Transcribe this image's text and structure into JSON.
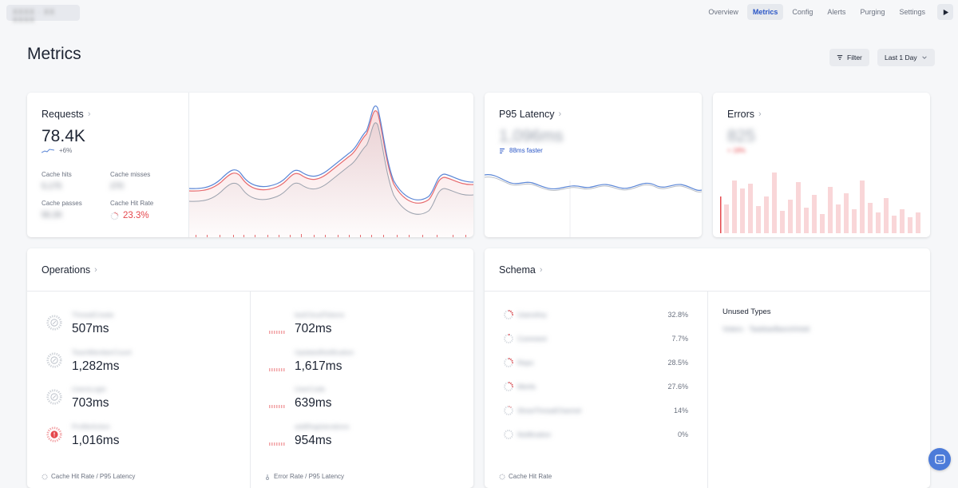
{
  "nav": {
    "brand": "XXXX · XX XXXX",
    "tabs": [
      "Overview",
      "Metrics",
      "Config",
      "Alerts",
      "Purging",
      "Settings"
    ],
    "active": "Metrics"
  },
  "page": {
    "title": "Metrics"
  },
  "toolbar": {
    "filter_label": "Filter",
    "range_label": "Last 1 Day"
  },
  "requests": {
    "title": "Requests",
    "total": "78.4K",
    "change": "+6%",
    "cache_hits_label": "Cache hits",
    "cache_hits_value": "5,175",
    "cache_misses_label": "Cache misses",
    "cache_misses_value": "270",
    "cache_passes_label": "Cache passes",
    "cache_passes_value": "56.2K",
    "hit_rate_label": "Cache Hit Rate",
    "hit_rate_value": "23.3%"
  },
  "latency": {
    "title": "P95 Latency",
    "value": "1,096ms",
    "delta": "88ms faster"
  },
  "errors": {
    "title": "Errors",
    "value": "825",
    "delta": "+ 18%"
  },
  "operations": {
    "title": "Operations",
    "left": [
      {
        "name": "ThreadCreate",
        "value": "507ms"
      },
      {
        "name": "TeamMemberCount",
        "value": "1,282ms"
      },
      {
        "name": "UsersLogin",
        "value": "703ms"
      },
      {
        "name": "ProfileAction",
        "value": "1,016ms"
      }
    ],
    "right": [
      {
        "name": "lastCloudTokens",
        "value": "702ms"
      },
      {
        "name": "UpdatedNotification",
        "value": "1,617ms"
      },
      {
        "name": "UserCode",
        "value": "639ms"
      },
      {
        "name": "addRegisterations",
        "value": "954ms"
      }
    ],
    "left_footer": "Cache Hit Rate / P95 Latency",
    "right_footer": "Error Rate / P95 Latency"
  },
  "schema": {
    "title": "Schema",
    "rows": [
      {
        "name": "UsersAny",
        "pct": "32.8%"
      },
      {
        "name": "Comment",
        "pct": "7.7%"
      },
      {
        "name": "Repo",
        "pct": "28.5%"
      },
      {
        "name": "Merits",
        "pct": "27.6%"
      },
      {
        "name": "ShowThreadChannel",
        "pct": "14%"
      },
      {
        "name": "Notification",
        "pct": "0%"
      }
    ],
    "unused_title": "Unused Types",
    "unused_value": "Voters · TaskbarBanchHold",
    "footer": "Cache Hit Rate"
  },
  "colors": {
    "accent": "#2a56c6",
    "error": "#e5484d",
    "line_blue": "#5b86d6",
    "line_red": "#e66a6e"
  }
}
